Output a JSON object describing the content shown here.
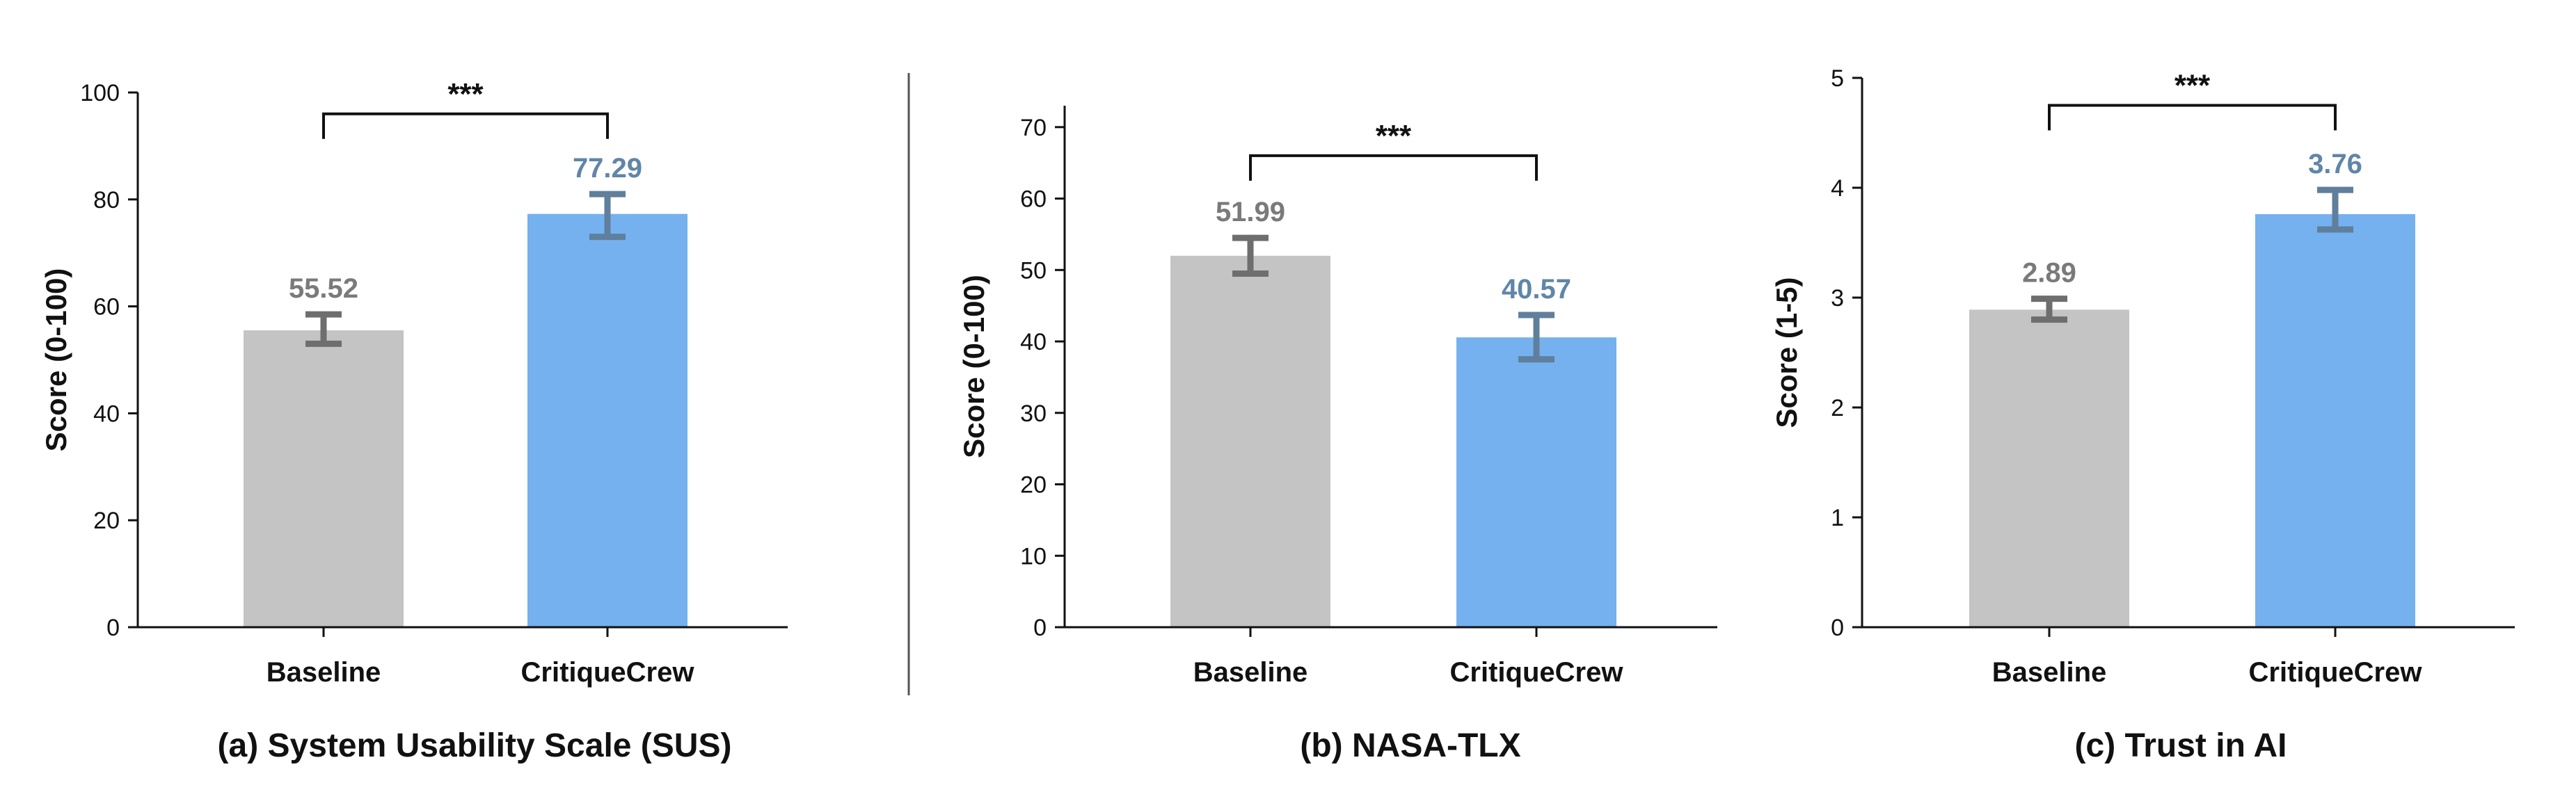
{
  "colors": {
    "baseline_bar": "#c4c4c4",
    "critiquecrew_bar": "#74b1ee",
    "baseline_errorbar": "#6e6e6e",
    "critiquecrew_errorbar": "#5f7f9c",
    "baseline_value_text": "#7a7a7a",
    "critiquecrew_value_text": "#6086a8",
    "axis": "#111111"
  },
  "chart_data": [
    {
      "type": "bar",
      "caption": "(a)  System Usability Scale (SUS)",
      "ylabel": "Score (0-100)",
      "categories": [
        "Baseline",
        "CritiqueCrew"
      ],
      "values": [
        55.52,
        77.29
      ],
      "value_labels": [
        "55.52",
        "77.29"
      ],
      "error_low": [
        53.0,
        73.0
      ],
      "error_high": [
        58.5,
        81.0
      ],
      "ylim": [
        0,
        100
      ],
      "yticks": [
        0,
        20,
        40,
        60,
        80,
        100
      ],
      "ytick_labels": [
        "0",
        "20",
        "40",
        "60",
        "80",
        "100"
      ],
      "significance": "***",
      "bracket_level": 96
    },
    {
      "type": "bar",
      "caption": "(b) NASA-TLX",
      "ylabel": "Score (0-100)",
      "categories": [
        "Baseline",
        "CritiqueCrew"
      ],
      "values": [
        51.99,
        40.57
      ],
      "value_labels": [
        "51.99",
        "40.57"
      ],
      "error_low": [
        49.5,
        37.5
      ],
      "error_high": [
        54.5,
        43.7
      ],
      "ylim": [
        0,
        73
      ],
      "yticks": [
        0,
        10,
        20,
        30,
        40,
        50,
        60,
        70
      ],
      "ytick_labels": [
        "0",
        "10",
        "20",
        "30",
        "40",
        "50",
        "60",
        "70"
      ],
      "significance": "***",
      "bracket_level": 66
    },
    {
      "type": "bar",
      "caption": "(c)  Trust in AI",
      "ylabel": "Score (1-5)",
      "categories": [
        "Baseline",
        "CritiqueCrew"
      ],
      "values": [
        2.89,
        3.76
      ],
      "value_labels": [
        "2.89",
        "3.76"
      ],
      "error_low": [
        2.8,
        3.62
      ],
      "error_high": [
        2.99,
        3.98
      ],
      "ylim": [
        0,
        5
      ],
      "yticks": [
        0,
        1,
        2,
        3,
        4,
        5
      ],
      "ytick_labels": [
        "0",
        "1",
        "2",
        "3",
        "4",
        "5"
      ],
      "significance": "***",
      "bracket_level": 4.75
    }
  ]
}
